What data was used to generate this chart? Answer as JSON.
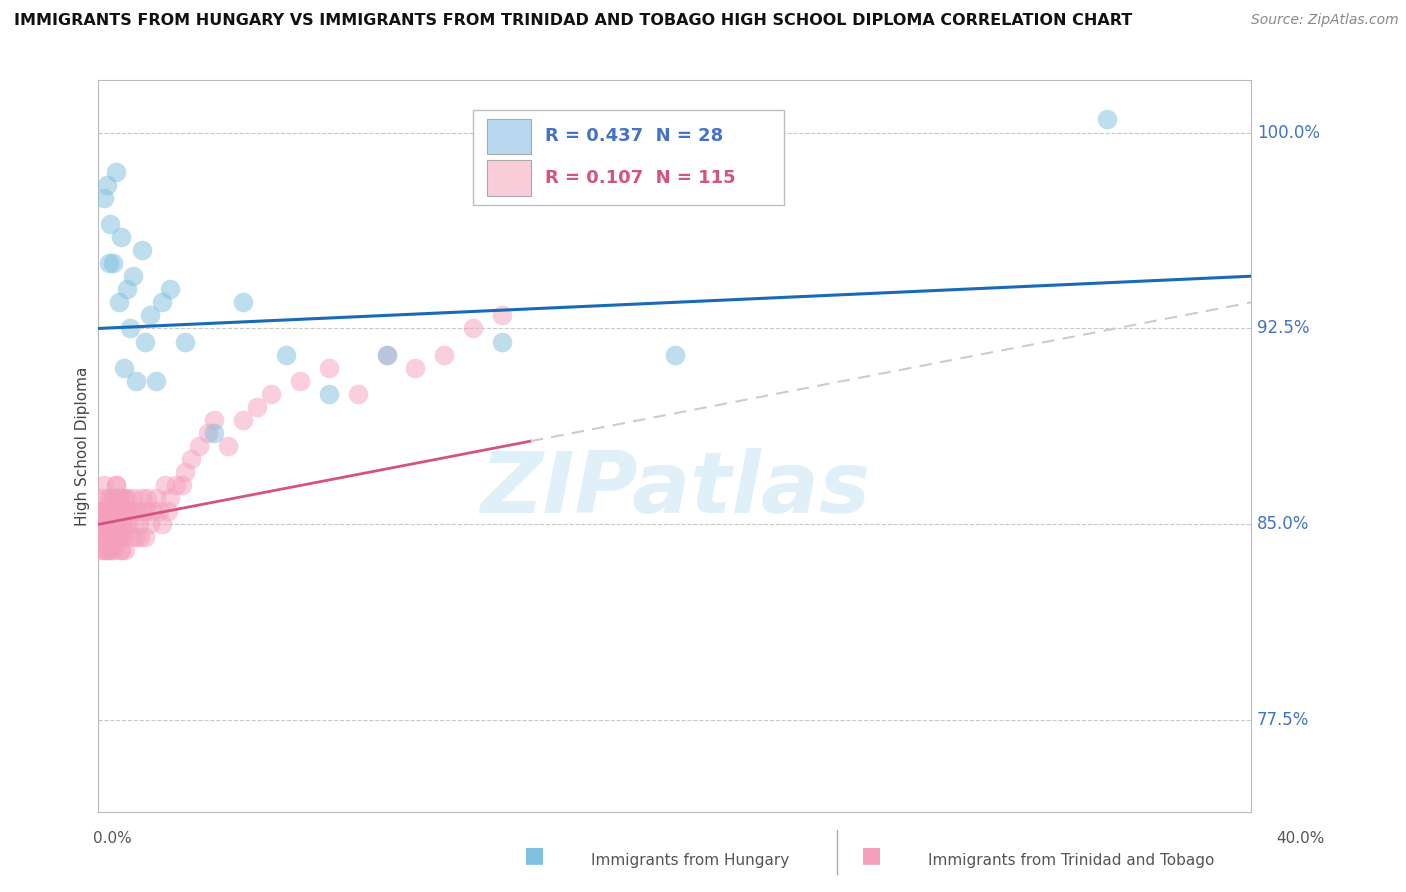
{
  "title": "IMMIGRANTS FROM HUNGARY VS IMMIGRANTS FROM TRINIDAD AND TOBAGO HIGH SCHOOL DIPLOMA CORRELATION CHART",
  "source": "Source: ZipAtlas.com",
  "ylabel": "High School Diploma",
  "hungary_R": 0.437,
  "hungary_N": 28,
  "tt_R": 0.107,
  "tt_N": 115,
  "hungary_color": "#7fbfdf",
  "tt_color": "#f4a0bc",
  "hungary_line_color": "#1a6bb5",
  "tt_line_color": "#d4547a",
  "tt_dash_color": "#cccccc",
  "legend_color_hungary": "#b8d8f0",
  "legend_color_tt": "#f8ccd8",
  "xmin": 0.0,
  "xmax": 40.0,
  "ymin": 74.0,
  "ymax": 102.0,
  "right_ytick_vals": [
    77.5,
    85.0,
    92.5,
    100.0
  ],
  "right_ytick_labels": [
    "77.5%",
    "85.0%",
    "92.5%",
    "100.0%"
  ],
  "hungary_x": [
    0.2,
    0.3,
    0.4,
    0.5,
    0.6,
    0.7,
    0.8,
    0.9,
    1.0,
    1.1,
    1.2,
    1.3,
    1.5,
    1.6,
    1.8,
    2.0,
    2.2,
    2.5,
    3.0,
    4.0,
    5.0,
    6.5,
    8.0,
    10.0,
    14.0,
    20.0,
    35.0,
    0.35
  ],
  "hungary_y": [
    97.5,
    98.0,
    96.5,
    95.0,
    98.5,
    93.5,
    96.0,
    91.0,
    94.0,
    92.5,
    94.5,
    90.5,
    95.5,
    92.0,
    93.0,
    90.5,
    93.5,
    94.0,
    92.0,
    88.5,
    93.5,
    91.5,
    90.0,
    91.5,
    92.0,
    91.5,
    100.5,
    95.0
  ],
  "tt_x": [
    0.05,
    0.08,
    0.1,
    0.12,
    0.15,
    0.18,
    0.2,
    0.22,
    0.25,
    0.28,
    0.3,
    0.32,
    0.35,
    0.38,
    0.4,
    0.42,
    0.45,
    0.48,
    0.5,
    0.52,
    0.55,
    0.58,
    0.6,
    0.62,
    0.65,
    0.68,
    0.7,
    0.72,
    0.75,
    0.78,
    0.8,
    0.82,
    0.85,
    0.88,
    0.9,
    0.92,
    0.95,
    0.98,
    1.0,
    1.05,
    1.1,
    1.15,
    1.2,
    1.25,
    1.3,
    1.35,
    1.4,
    1.45,
    1.5,
    1.55,
    1.6,
    1.65,
    1.7,
    1.8,
    1.9,
    2.0,
    2.1,
    2.2,
    2.3,
    2.4,
    2.5,
    2.7,
    2.9,
    3.0,
    3.2,
    3.5,
    3.8,
    4.0,
    4.5,
    5.0,
    5.5,
    6.0,
    7.0,
    8.0,
    9.0,
    10.0,
    11.0,
    12.0,
    13.0,
    14.0,
    0.06,
    0.09,
    0.11,
    0.13,
    0.16,
    0.19,
    0.21,
    0.23,
    0.26,
    0.29,
    0.31,
    0.33,
    0.36,
    0.39,
    0.41,
    0.43,
    0.46,
    0.49,
    0.51,
    0.53,
    0.56,
    0.59,
    0.61,
    0.63,
    0.66,
    0.69,
    0.71,
    0.73,
    0.76,
    0.79,
    0.81,
    0.83,
    0.86,
    0.89,
    0.91
  ],
  "tt_y": [
    85.5,
    85.0,
    86.0,
    84.5,
    85.5,
    84.0,
    86.5,
    85.0,
    84.5,
    85.5,
    85.0,
    84.0,
    86.0,
    85.5,
    84.5,
    85.0,
    85.5,
    84.0,
    85.5,
    86.0,
    85.0,
    84.5,
    86.5,
    85.0,
    84.5,
    85.0,
    86.0,
    84.5,
    85.5,
    84.0,
    85.5,
    85.0,
    84.5,
    86.0,
    85.5,
    84.0,
    85.5,
    85.0,
    86.0,
    85.5,
    85.0,
    84.5,
    86.0,
    85.5,
    84.5,
    85.5,
    85.0,
    84.5,
    86.0,
    85.5,
    84.5,
    85.5,
    86.0,
    85.0,
    85.5,
    86.0,
    85.5,
    85.0,
    86.5,
    85.5,
    86.0,
    86.5,
    86.5,
    87.0,
    87.5,
    88.0,
    88.5,
    89.0,
    88.0,
    89.0,
    89.5,
    90.0,
    90.5,
    91.0,
    90.0,
    91.5,
    91.0,
    91.5,
    92.5,
    93.0,
    85.0,
    84.5,
    85.5,
    84.0,
    85.5,
    84.0,
    85.5,
    85.0,
    84.5,
    85.5,
    85.0,
    84.0,
    86.0,
    85.5,
    84.5,
    85.0,
    85.5,
    84.0,
    85.5,
    86.0,
    85.0,
    84.5,
    86.5,
    85.0,
    84.5,
    85.0,
    86.0,
    84.5,
    85.5,
    84.0,
    85.5,
    85.0,
    84.5,
    86.0,
    85.5
  ],
  "tt_solid_end": 15.0,
  "hu_line_x0": 0.0,
  "hu_line_x1": 40.0,
  "hu_line_y0": 92.5,
  "hu_line_y1": 94.5,
  "tt_line_x0": 0.0,
  "tt_line_x1": 40.0,
  "tt_line_y0": 85.0,
  "tt_line_y1": 93.5,
  "tt_dash_start_x": 15.0
}
